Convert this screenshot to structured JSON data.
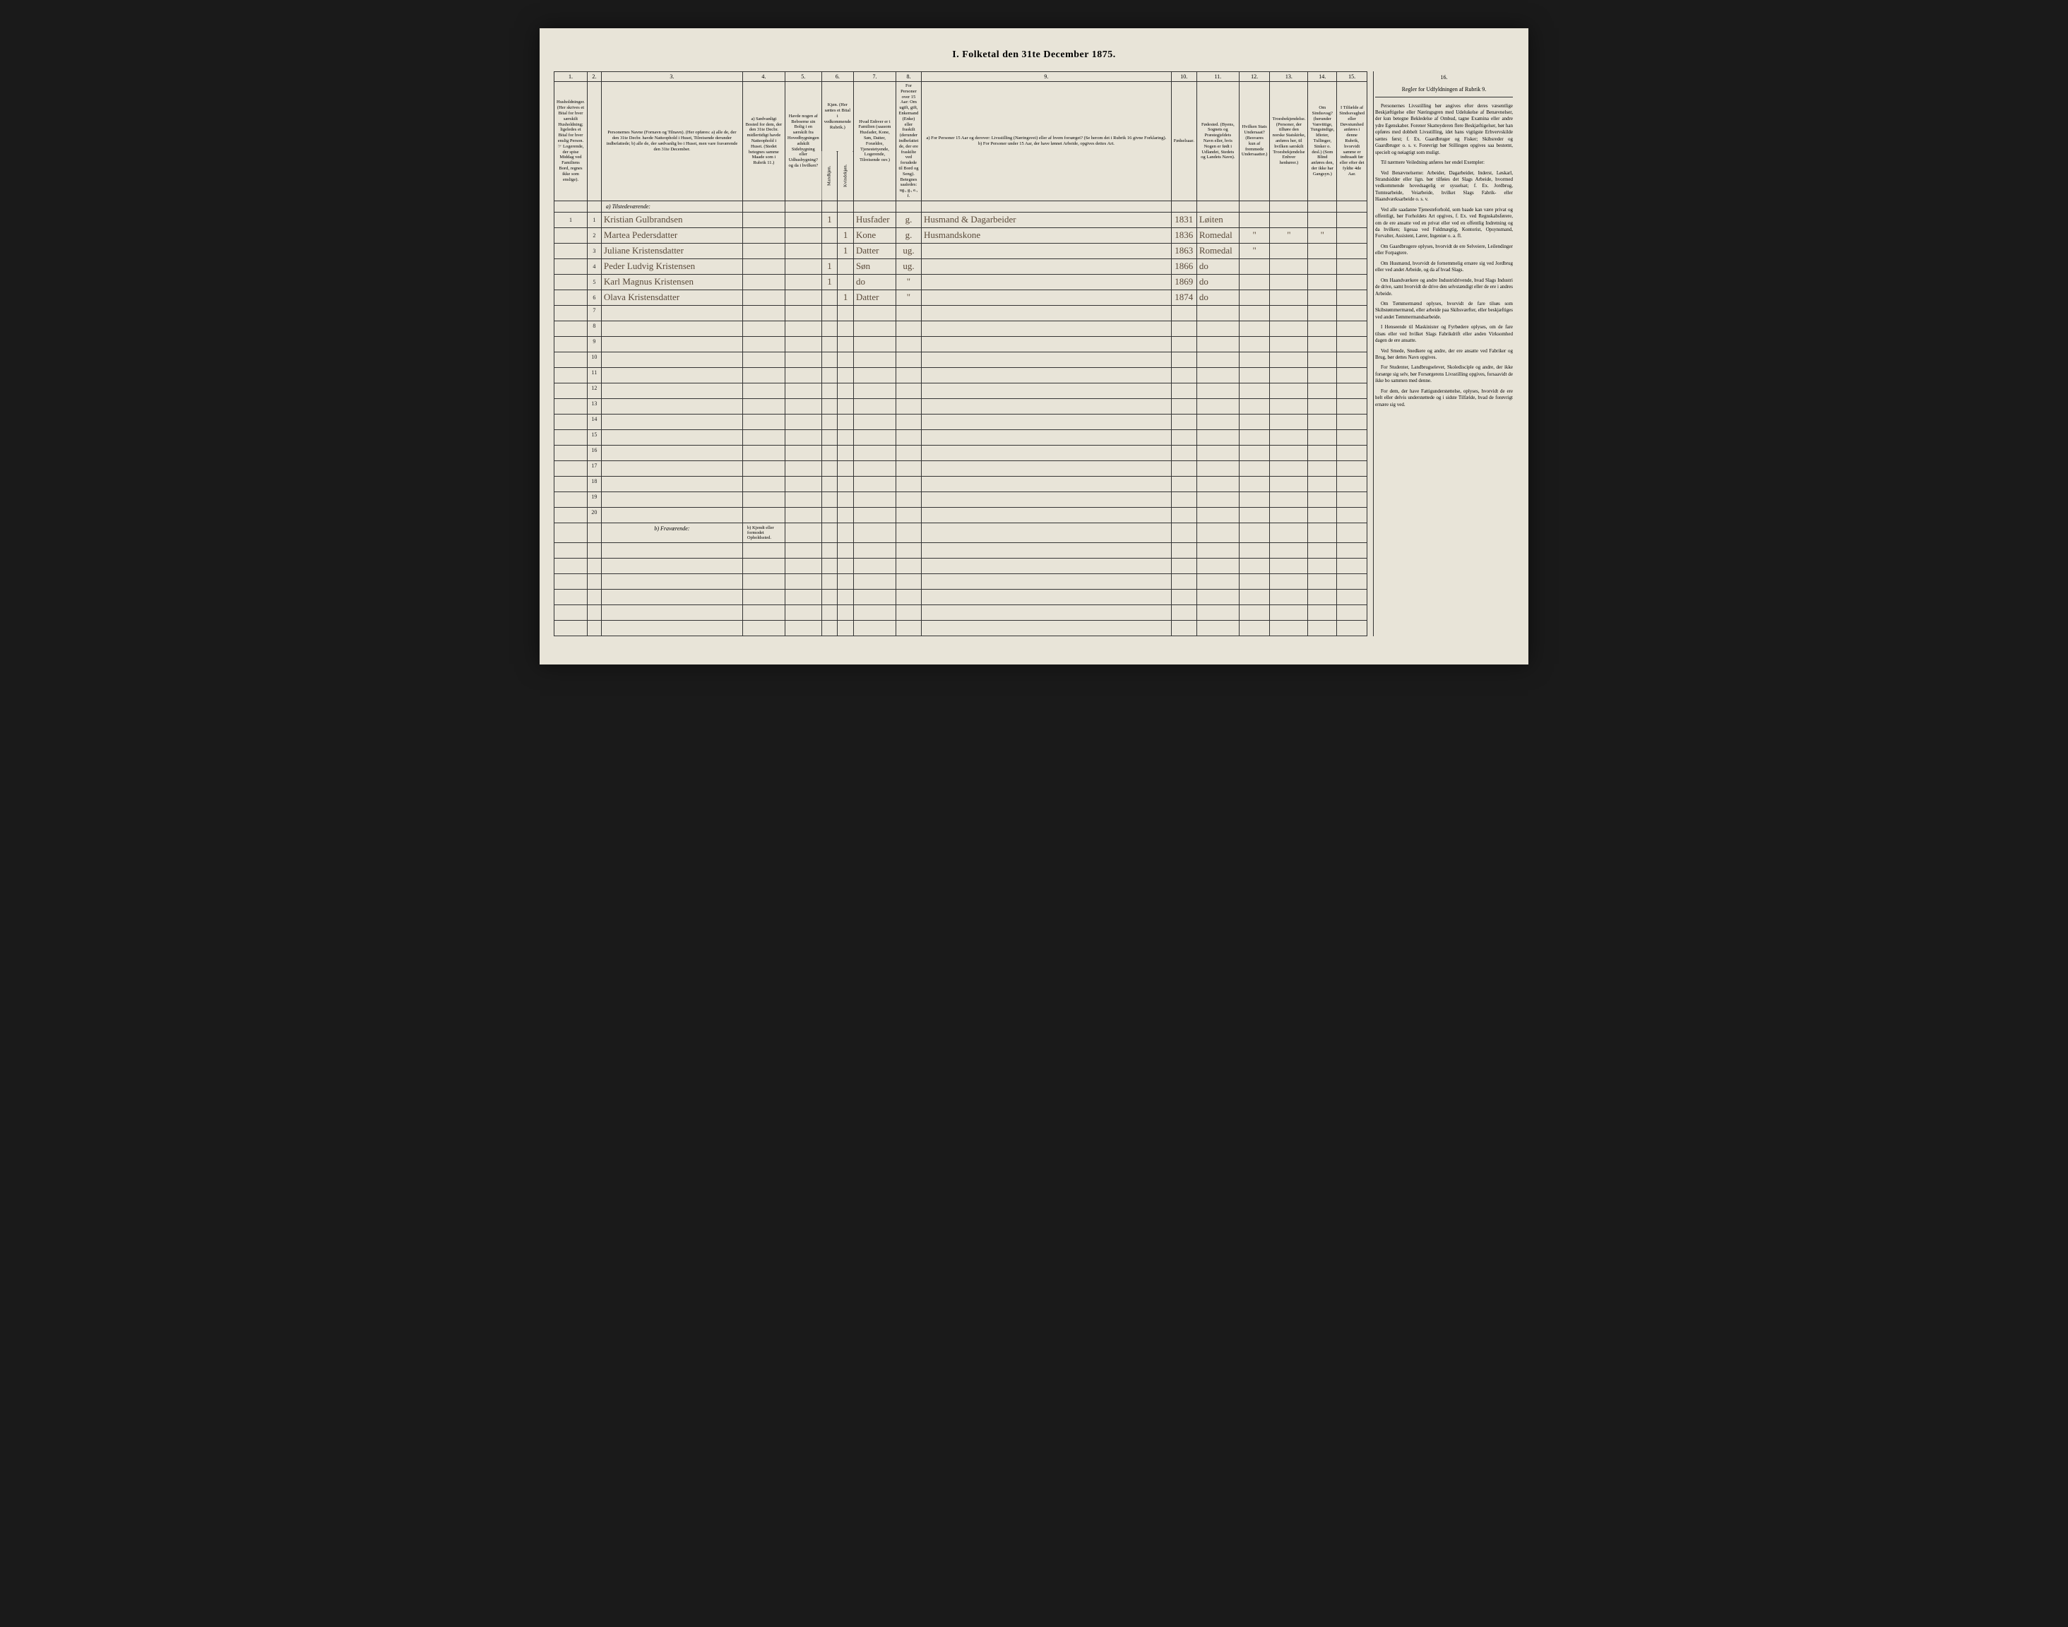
{
  "title": "I. Folketal den 31te December 1875.",
  "columns": {
    "nums": [
      "1.",
      "2.",
      "3.",
      "4.",
      "5.",
      "6.",
      "7.",
      "8.",
      "9.",
      "10.",
      "11.",
      "12.",
      "13.",
      "14.",
      "15.",
      "16."
    ],
    "h1": "Husholdninger. (Her skrives et Bital for hver særskilt Husholdning; ligeledes et Bital for hver enslig Person. ☞ Logerende, der spise Middag ved Familiens Bord, regnes ikke som enslige).",
    "h2": "Personernes Navne (Fornavn og Tilnavn). (Her opføres: a) alle de, der den 31te Decbr. havde Natteophold i Huset, Tilreisende derunder indbefattede; b) alle de, der sædvanlig bo i Huset, men vare fraværende den 31te December.",
    "h4": "a) Sædvanligt Bosted for dem, der den 31te Decbr. midlertidigt havde Natteophold i Huset. (Stedet betegnes samme Maade som i Rubrik 11.)",
    "h5": "Havde nogen af Beboerne sin Bolig i en særskilt fra Hovedbygningen adskilt Sidebygning eller Udhusbygning? og da i hvilken?",
    "h6": "Kjøn. (Her sættes et Bital i vedkommende Rubrik.)",
    "h6a": "Mandkjøn.",
    "h6b": "Kvindekjøn.",
    "h7": "Hvad Enhver er i Familien (saasom Husfader, Kone, Søn, Datter, Forældre, Tjenestetyende, Logerende, Tilreisende osv.)",
    "h8": "For Personer over 15 Aar: Om ugift, gift, Enkemand (Enke) eller fraskilt (derunder indbefattet de, der ere fraskilte ved forudede til Bord og Seng). Betegnes saaledes: ug., g., e., f.",
    "h9": "a) For Personer 15 Aar og derover: Livsstilling (Næringsvei) eller af hvem forsørget? (Se herom det i Rubrik 16 givne Forklaring). b) For Personer under 15 Aar, der have lønnet Arbeide, opgives dettes Art.",
    "h10": "Fødselsaar.",
    "h11": "Fødested. (Byens, Sognets og Præstegjeldets Navn eller, hvis Nogen er født i Udlandet, Stedets og Landets Navn).",
    "h12": "Hvilken Stats Undersaat? (Besvares kun af fremmede Undersaatter.)",
    "h13": "Troesbekjendelse. (Personer, der tilhøre den norske Statskirke, anføres her, til hvilken særskilt Troesbekjendelse Enhver henhører.)",
    "h14": "Om Sindssvag? (herunder Vanvittige, Tungsindige, Idioter, Tullinger, Sinker o. desl.) (Som Blind anføres den, der ikke har Gangsyn.)",
    "h15": "I Tilfælde af Sindssvaghed eller Døvstumhed anføres i denne Rubrik, hvorvidt samme er indtraadt før eller efter det fyldte 4de Aar.",
    "h16": "Regler for Udfyldningen af Rubrik 9."
  },
  "section_a": "a) Tilstedeværende:",
  "section_b": "b) Fraværende:",
  "section_b_col4": "b) Kjendt eller formodet Opholdssted.",
  "rows": [
    {
      "n": "1",
      "hh": "1",
      "name": "Kristian Gulbrandsen",
      "c4": "",
      "c5": "",
      "m": "1",
      "k": "",
      "fam": "Husfader",
      "civ": "g.",
      "occ": "Husmand & Dagarbeider",
      "year": "1831",
      "place": "Løiten",
      "c12": "",
      "c13": "",
      "c14": "",
      "c15": ""
    },
    {
      "n": "2",
      "hh": "",
      "name": "Martea Pedersdatter",
      "c4": "",
      "c5": "",
      "m": "",
      "k": "1",
      "fam": "Kone",
      "civ": "g.",
      "occ": "Husmandskone",
      "year": "1836",
      "place": "Romedal",
      "c12": "\"",
      "c13": "\"",
      "c14": "\"",
      "c15": ""
    },
    {
      "n": "3",
      "hh": "",
      "name": "Juliane Kristensdatter",
      "c4": "",
      "c5": "",
      "m": "",
      "k": "1",
      "fam": "Datter",
      "civ": "ug.",
      "occ": "",
      "year": "1863",
      "place": "Romedal",
      "c12": "\"",
      "c13": "",
      "c14": "",
      "c15": ""
    },
    {
      "n": "4",
      "hh": "",
      "name": "Peder Ludvig Kristensen",
      "c4": "",
      "c5": "",
      "m": "1",
      "k": "",
      "fam": "Søn",
      "civ": "ug.",
      "occ": "",
      "year": "1866",
      "place": "do",
      "c12": "",
      "c13": "",
      "c14": "",
      "c15": ""
    },
    {
      "n": "5",
      "hh": "",
      "name": "Karl Magnus Kristensen",
      "c4": "",
      "c5": "",
      "m": "1",
      "k": "",
      "fam": "do",
      "civ": "\"",
      "occ": "",
      "year": "1869",
      "place": "do",
      "c12": "",
      "c13": "",
      "c14": "",
      "c15": ""
    },
    {
      "n": "6",
      "hh": "",
      "name": "Olava Kristensdatter",
      "c4": "",
      "c5": "",
      "m": "",
      "k": "1",
      "fam": "Datter",
      "civ": "\"",
      "occ": "",
      "year": "1874",
      "place": "do",
      "c12": "",
      "c13": "",
      "c14": "",
      "c15": ""
    }
  ],
  "empty_rows": [
    "7",
    "8",
    "9",
    "10",
    "11",
    "12",
    "13",
    "14",
    "15",
    "16",
    "17",
    "18",
    "19",
    "20"
  ],
  "absent_rows": 6,
  "instructions": {
    "title": "",
    "paras": [
      "Personernes Livsstilling bør angives efter deres væsentlige Beskjæftigelse eller Næringsgren med Udelukelse af Benævnelser, der kun betegne Bekledelse af Ombud, tagne Examina eller andre ydre Egenskaber. Forener Skatteyderen flere Beskjæftigelser, bør han opføres med dobbelt Livsstilling, idet hans vigtigste Erhvervskilde sættes først; f. Ex. Gaardbruger og Fisker; Skibsreder og Gaardbruger o. s. v. Forøvrigt bør Stillingen opgives saa bestemt, specielt og nøiagtigt som muligt.",
      "Til nærmere Veiledning anføres her endel Exempler:",
      "Ved Benævnelserne: Arbeider, Dagarbeider, Inderst, Løskarl, Strandsidder eller lign. bør tilføies det Slags Arbeide, hvormed vedkommende hovedsagelig er sysselsat; f. Ex. Jordbrug, Tomtearbeide, Veiarbeide, hvilket Slags Fabrik- eller Haandværksarbeide o. s. v.",
      "Ved alle saadanne Tjenesteforhold, som baade kan være privat og offentligt, bør Forholdets Art opgives, f. Ex. ved Regnskabsførere, om de ere ansatte ved en privat eller ved en offentlig Indretning og da hvilken; ligesaa ved Fuldmægtig, Kontorist, Opsynsmand, Forvalter, Assistent, Lærer, Ingeniør o. a. fl.",
      "Om Gaardbrugere oplyses, hvorvidt de ere Selveiere, Leilendinger eller Forpagtere.",
      "Om Husmænd, hvorvidt de fornemmelig ernære sig ved Jordbrug eller ved andet Arbeide, og da af hvad Slags.",
      "Om Haandværkere og andre Industridrivende, hvad Slags Industri de drive, samt hvorvidt de drive den selvstændigt eller de ere i andres Arbeide.",
      "Om Tømmermænd oplyses, hvorvidt de fare tilsøs som Skibstømmermænd, eller arbeide paa Skibsværfter, eller beskjæftiges ved andet Tømmermandsarbeide.",
      "I Henseende til Maskinister og Fyrbødere oplyses, om de fare tilsøs eller ved hvilket Slags Fabrikdrift eller anden Virksomhed dagen de ere ansatte.",
      "Ved Smede, Snedkere og andre, der ere ansatte ved Fabriker og Brug, bør dettes Navn opgives.",
      "For Studenter, Landbrugselever, Skoledisciple og andre, der ikke forsørge sig selv, bør Forsørgerens Livsstilling opgives, forsaavidt de ikke bo sammen med denne.",
      "For dem, der have Fattigunderstøttelse, oplyses, hvorvidt de ere helt eller delvis understøttede og i sidste Tilfælde, hvad de forøvrigt ernære sig ved."
    ]
  }
}
